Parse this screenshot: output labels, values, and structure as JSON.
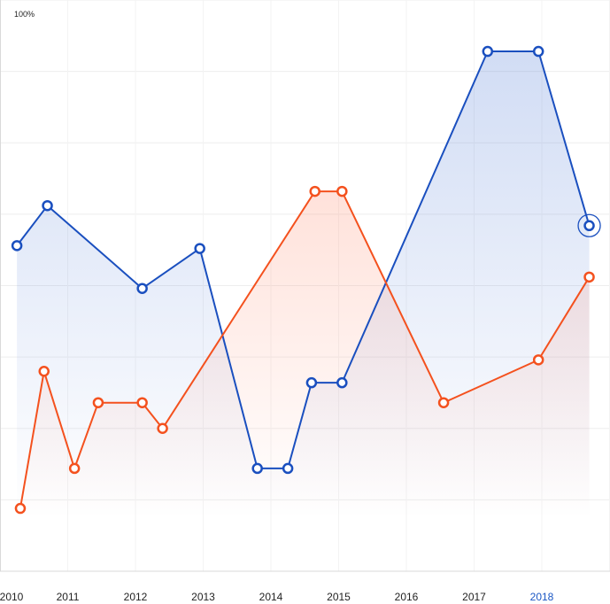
{
  "chart_data": {
    "type": "line",
    "y_top_label": "100%",
    "x_tick_labels": [
      "2010",
      "2011",
      "2012",
      "2013",
      "2014",
      "2015",
      "2016",
      "2017",
      "2018"
    ],
    "active_tick": "2018",
    "xlim": [
      2010,
      2018.85
    ],
    "ylim": [
      0,
      100
    ],
    "grid": true,
    "series": [
      {
        "color": "#1a4fbf",
        "fill_color": "#2f62cf",
        "points": [
          {
            "x": 2010.25,
            "y": 57
          },
          {
            "x": 2010.7,
            "y": 64
          },
          {
            "x": 2012.1,
            "y": 49.5
          },
          {
            "x": 2012.95,
            "y": 56.5
          },
          {
            "x": 2013.8,
            "y": 18
          },
          {
            "x": 2014.25,
            "y": 18
          },
          {
            "x": 2014.6,
            "y": 33
          },
          {
            "x": 2015.05,
            "y": 33
          },
          {
            "x": 2017.2,
            "y": 91
          },
          {
            "x": 2017.95,
            "y": 91
          },
          {
            "x": 2018.7,
            "y": 60.5
          }
        ],
        "highlight_index": 10
      },
      {
        "color": "#f4511e",
        "fill_color": "#ff7a59",
        "points": [
          {
            "x": 2010.3,
            "y": 11
          },
          {
            "x": 2010.65,
            "y": 35
          },
          {
            "x": 2011.1,
            "y": 18
          },
          {
            "x": 2011.45,
            "y": 29.5
          },
          {
            "x": 2012.1,
            "y": 29.5
          },
          {
            "x": 2012.4,
            "y": 25
          },
          {
            "x": 2014.65,
            "y": 66.5
          },
          {
            "x": 2015.05,
            "y": 66.5
          },
          {
            "x": 2016.55,
            "y": 29.5
          },
          {
            "x": 2017.95,
            "y": 37
          },
          {
            "x": 2018.7,
            "y": 51.5
          }
        ]
      }
    ]
  }
}
